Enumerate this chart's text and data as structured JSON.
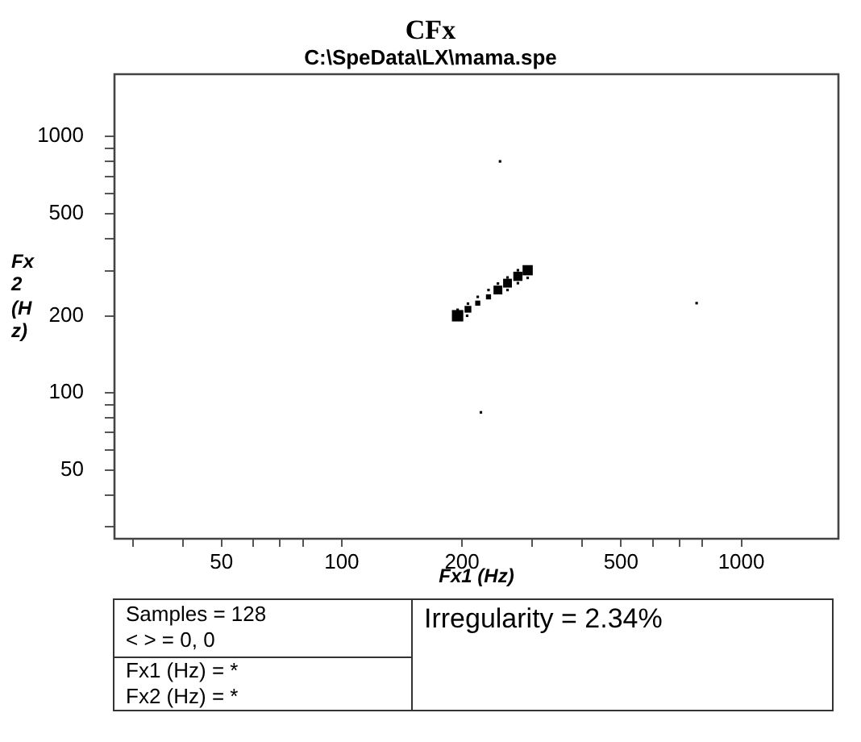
{
  "chart_data": {
    "type": "bubble",
    "title": "CFx",
    "subtitle": "C:\\SpeData\\LX\\mama.spe",
    "xlabel": "Fx1 (Hz)",
    "ylabel": "Fx2 (Hz)",
    "x": [
      195,
      195,
      206,
      207,
      207,
      219,
      219,
      233,
      233,
      246,
      246,
      260,
      260,
      260,
      276,
      276,
      276,
      292,
      292,
      249,
      773,
      223
    ],
    "values": [
      200,
      211,
      200,
      212,
      223,
      224,
      237,
      237,
      252,
      252,
      267,
      252,
      268,
      282,
      268,
      285,
      301,
      281,
      301,
      800,
      224,
      84
    ],
    "sizes": [
      1,
      0.05,
      0.05,
      0.35,
      0.05,
      0.2,
      0.05,
      0.2,
      0.05,
      0.6,
      0.05,
      0.05,
      0.6,
      0.05,
      0.05,
      0.65,
      0.05,
      0.05,
      0.8,
      0.05,
      0.05,
      0.05
    ],
    "color": "#000000",
    "marker": "square",
    "log": "xy",
    "xlim": [
      27,
      1750
    ],
    "ylim": [
      27,
      1750
    ],
    "xticks": [
      {
        "value": 30,
        "label": null
      },
      {
        "value": 40,
        "label": null
      },
      50,
      {
        "value": 60,
        "label": null
      },
      {
        "value": 70,
        "label": null
      },
      {
        "value": 80,
        "label": null
      },
      100,
      200,
      {
        "value": 300,
        "label": null
      },
      {
        "value": 400,
        "label": null
      },
      500,
      {
        "value": 600,
        "label": null
      },
      {
        "value": 700,
        "label": null
      },
      {
        "value": 800,
        "label": null
      },
      1000
    ],
    "yticks": [
      {
        "value": 30,
        "label": null
      },
      {
        "value": 40,
        "label": null
      },
      50,
      {
        "value": 60,
        "label": null
      },
      {
        "value": 70,
        "label": null
      },
      {
        "value": 80,
        "label": null
      },
      {
        "value": 90,
        "label": null
      },
      100,
      200,
      {
        "value": 300,
        "label": null
      },
      {
        "value": 400,
        "label": null
      },
      500,
      {
        "value": 600,
        "label": null
      },
      {
        "value": 700,
        "label": null
      },
      {
        "value": 800,
        "label": null
      },
      {
        "value": 900,
        "label": null
      },
      1000
    ],
    "annotations": [
      "Samples = 128",
      "< > = 0, 0",
      "Fx1 (Hz) = *",
      "Fx2 (Hz) = *",
      "Irregularity = 2.34%"
    ]
  }
}
